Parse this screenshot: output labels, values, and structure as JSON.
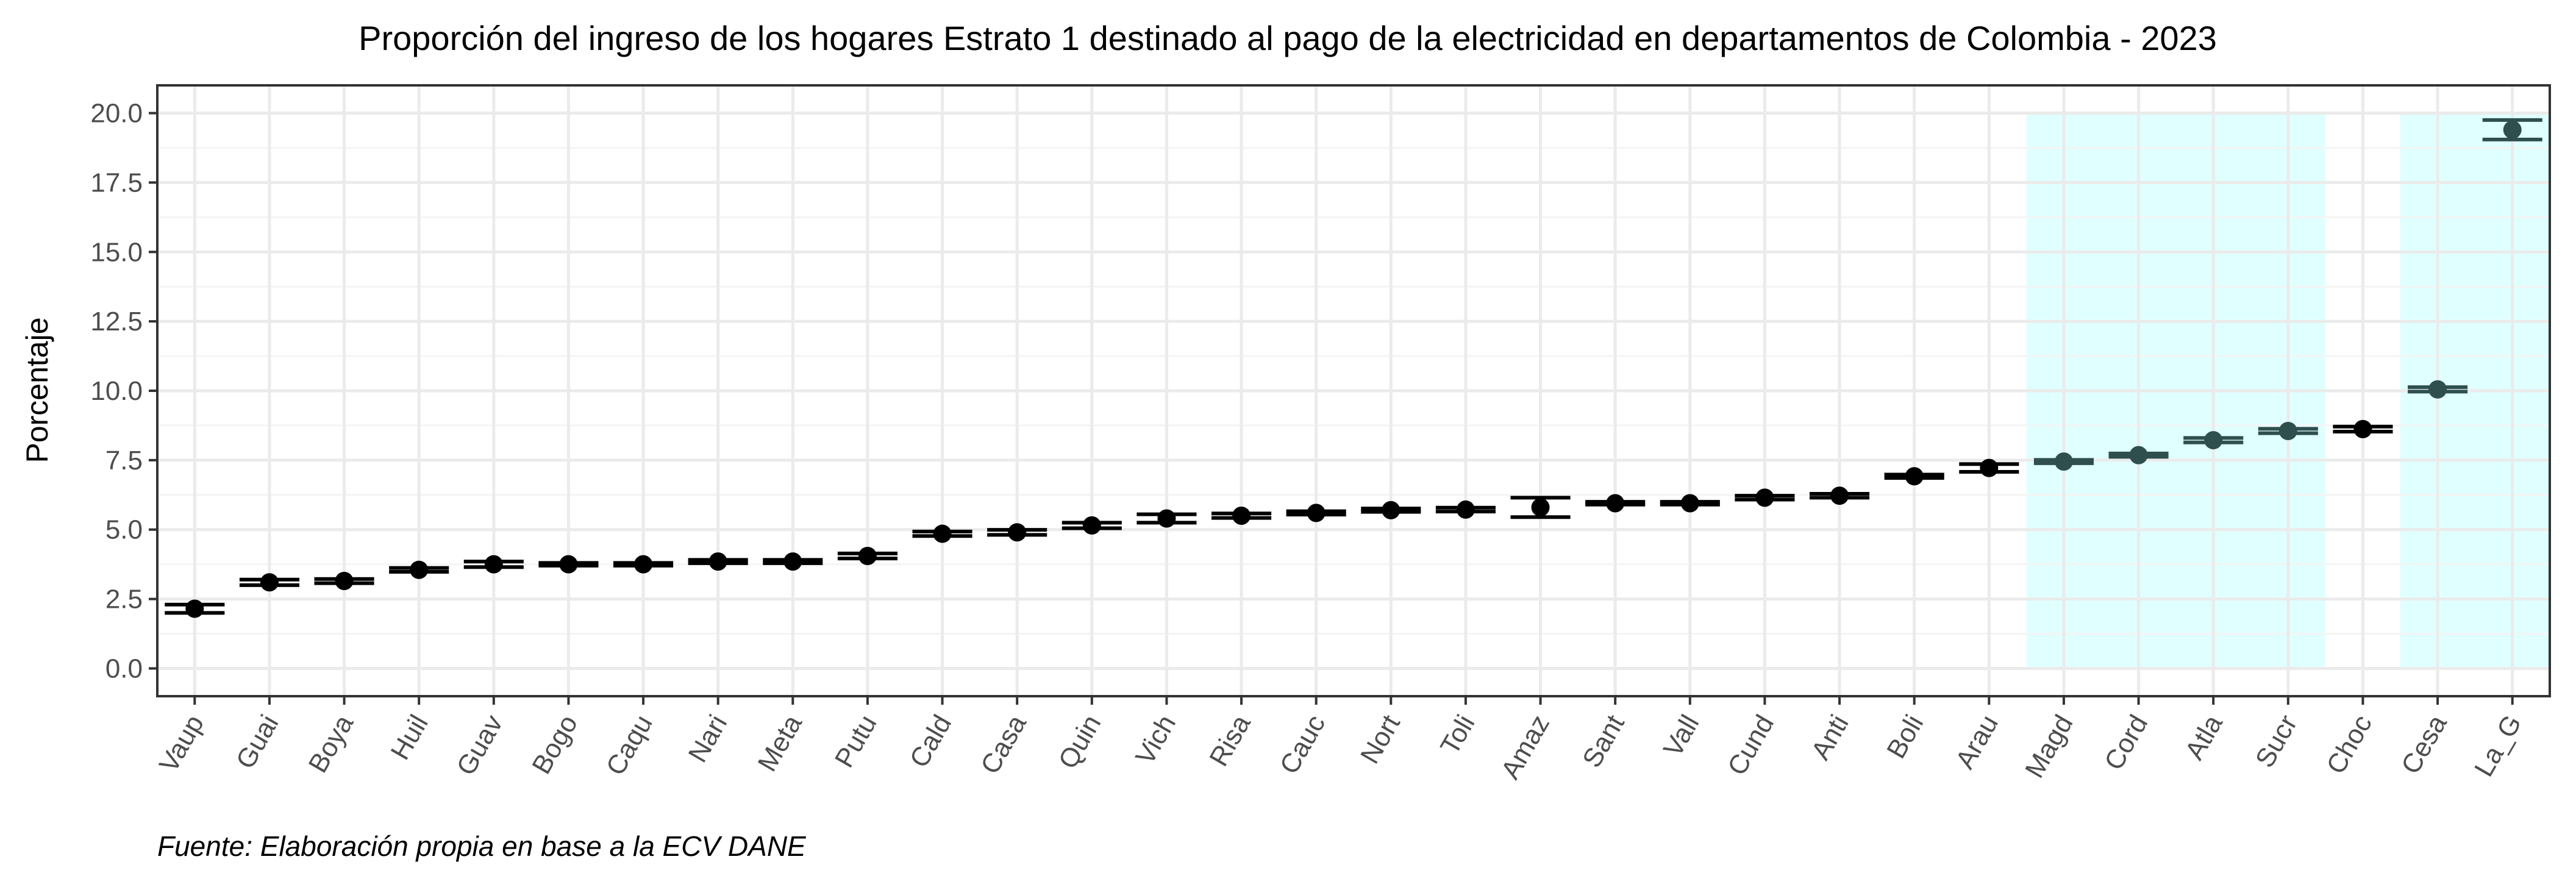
{
  "chart_data": {
    "type": "scatter",
    "title": "Proporción del ingreso de los hogares Estrato 1 destinado al pago de la electricidad en departamentos de Colombia - 2023",
    "xlabel": "",
    "ylabel": "Porcentaje",
    "caption": "Fuente: Elaboración propia en base a la ECV DANE",
    "ylim": [
      -1.0,
      21.0
    ],
    "yticks": [
      0.0,
      2.5,
      5.0,
      7.5,
      10.0,
      12.5,
      15.0,
      17.5,
      20.0
    ],
    "ytick_labels": [
      "0.0",
      "2.5",
      "5.0",
      "7.5",
      "10.0",
      "12.5",
      "15.0",
      "17.5",
      "20.0"
    ],
    "grid": true,
    "categories": [
      "Vaup",
      "Guai",
      "Boya",
      "Huil",
      "Guav",
      "Bogo",
      "Caqu",
      "Nari",
      "Meta",
      "Putu",
      "Cald",
      "Casa",
      "Quin",
      "Vich",
      "Risa",
      "Cauc",
      "Nort",
      "Toli",
      "Amaz",
      "Sant",
      "Vall",
      "Cund",
      "Anti",
      "Boli",
      "Arau",
      "Magd",
      "Cord",
      "Atla",
      "Sucr",
      "Choc",
      "Cesa",
      "La_G"
    ],
    "values": [
      2.15,
      3.1,
      3.15,
      3.55,
      3.75,
      3.75,
      3.75,
      3.85,
      3.85,
      4.05,
      4.85,
      4.9,
      5.15,
      5.4,
      5.5,
      5.6,
      5.7,
      5.72,
      5.8,
      5.95,
      5.95,
      6.15,
      6.22,
      6.92,
      7.22,
      7.45,
      7.68,
      8.22,
      8.55,
      8.62,
      10.05,
      19.4
    ],
    "lower": [
      2.0,
      3.0,
      3.07,
      3.48,
      3.65,
      3.7,
      3.7,
      3.79,
      3.79,
      3.96,
      4.77,
      4.81,
      5.05,
      5.25,
      5.42,
      5.54,
      5.64,
      5.65,
      5.45,
      5.9,
      5.9,
      6.08,
      6.15,
      6.86,
      7.08,
      7.39,
      7.62,
      8.14,
      8.47,
      8.53,
      9.97,
      19.05
    ],
    "upper": [
      2.3,
      3.2,
      3.22,
      3.62,
      3.85,
      3.8,
      3.8,
      3.91,
      3.91,
      4.14,
      4.93,
      4.99,
      5.25,
      5.55,
      5.58,
      5.66,
      5.76,
      5.79,
      6.15,
      6.0,
      6.0,
      6.22,
      6.29,
      6.98,
      7.36,
      7.51,
      7.74,
      8.3,
      8.63,
      8.71,
      10.13,
      19.75
    ],
    "highlight_ranges": [
      [
        "Magd",
        "Sucr"
      ],
      [
        "Cesa",
        "La_G"
      ]
    ],
    "highlight_ymax": 20.0,
    "colors": {
      "point": "#000000",
      "point_highlight": "#2f4f4f",
      "highlight_fill": "#e0ffff",
      "grid_major": "#ebebeb",
      "grid_minor": "#f4f4f4",
      "panel_border": "#333333"
    }
  }
}
